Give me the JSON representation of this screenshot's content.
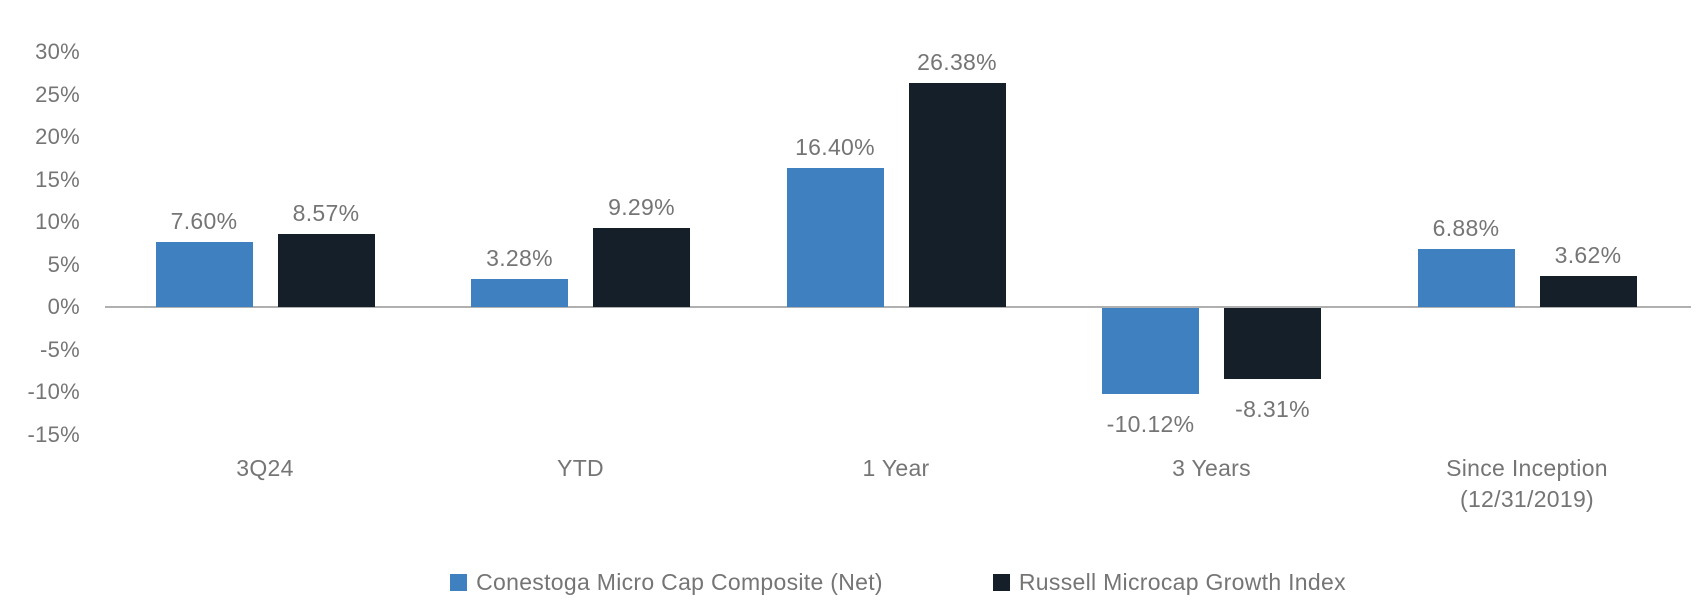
{
  "chart_data": {
    "type": "bar",
    "title": "",
    "xlabel": "",
    "ylabel": "",
    "grid": false,
    "legend_position": "bottom",
    "ylim": [
      -15,
      30
    ],
    "ytick_step": 5,
    "ytick_labels": [
      "30%",
      "25%",
      "20%",
      "15%",
      "10%",
      "5%",
      "0%",
      "-5%",
      "-10%",
      "-15%"
    ],
    "categories": [
      "3Q24",
      "YTD",
      "1 Year",
      "3 Years",
      "Since Inception\n(12/31/2019)"
    ],
    "series": [
      {
        "name": "Conestoga Micro Cap Composite (Net)",
        "color": "#3f80c1",
        "values": [
          7.6,
          3.28,
          16.4,
          -10.12,
          6.88
        ],
        "labels": [
          "7.60%",
          "3.28%",
          "16.40%",
          "-10.12%",
          "6.88%"
        ]
      },
      {
        "name": "Russell Microcap Growth Index",
        "color": "#151f2a",
        "values": [
          8.57,
          9.29,
          26.38,
          -8.31,
          3.62
        ],
        "labels": [
          "8.57%",
          "9.29%",
          "26.38%",
          "-8.31%",
          "3.62%"
        ]
      }
    ],
    "colors": {
      "axis_line": "#b0b0b0",
      "text": "#757575",
      "background": "#ffffff"
    }
  }
}
